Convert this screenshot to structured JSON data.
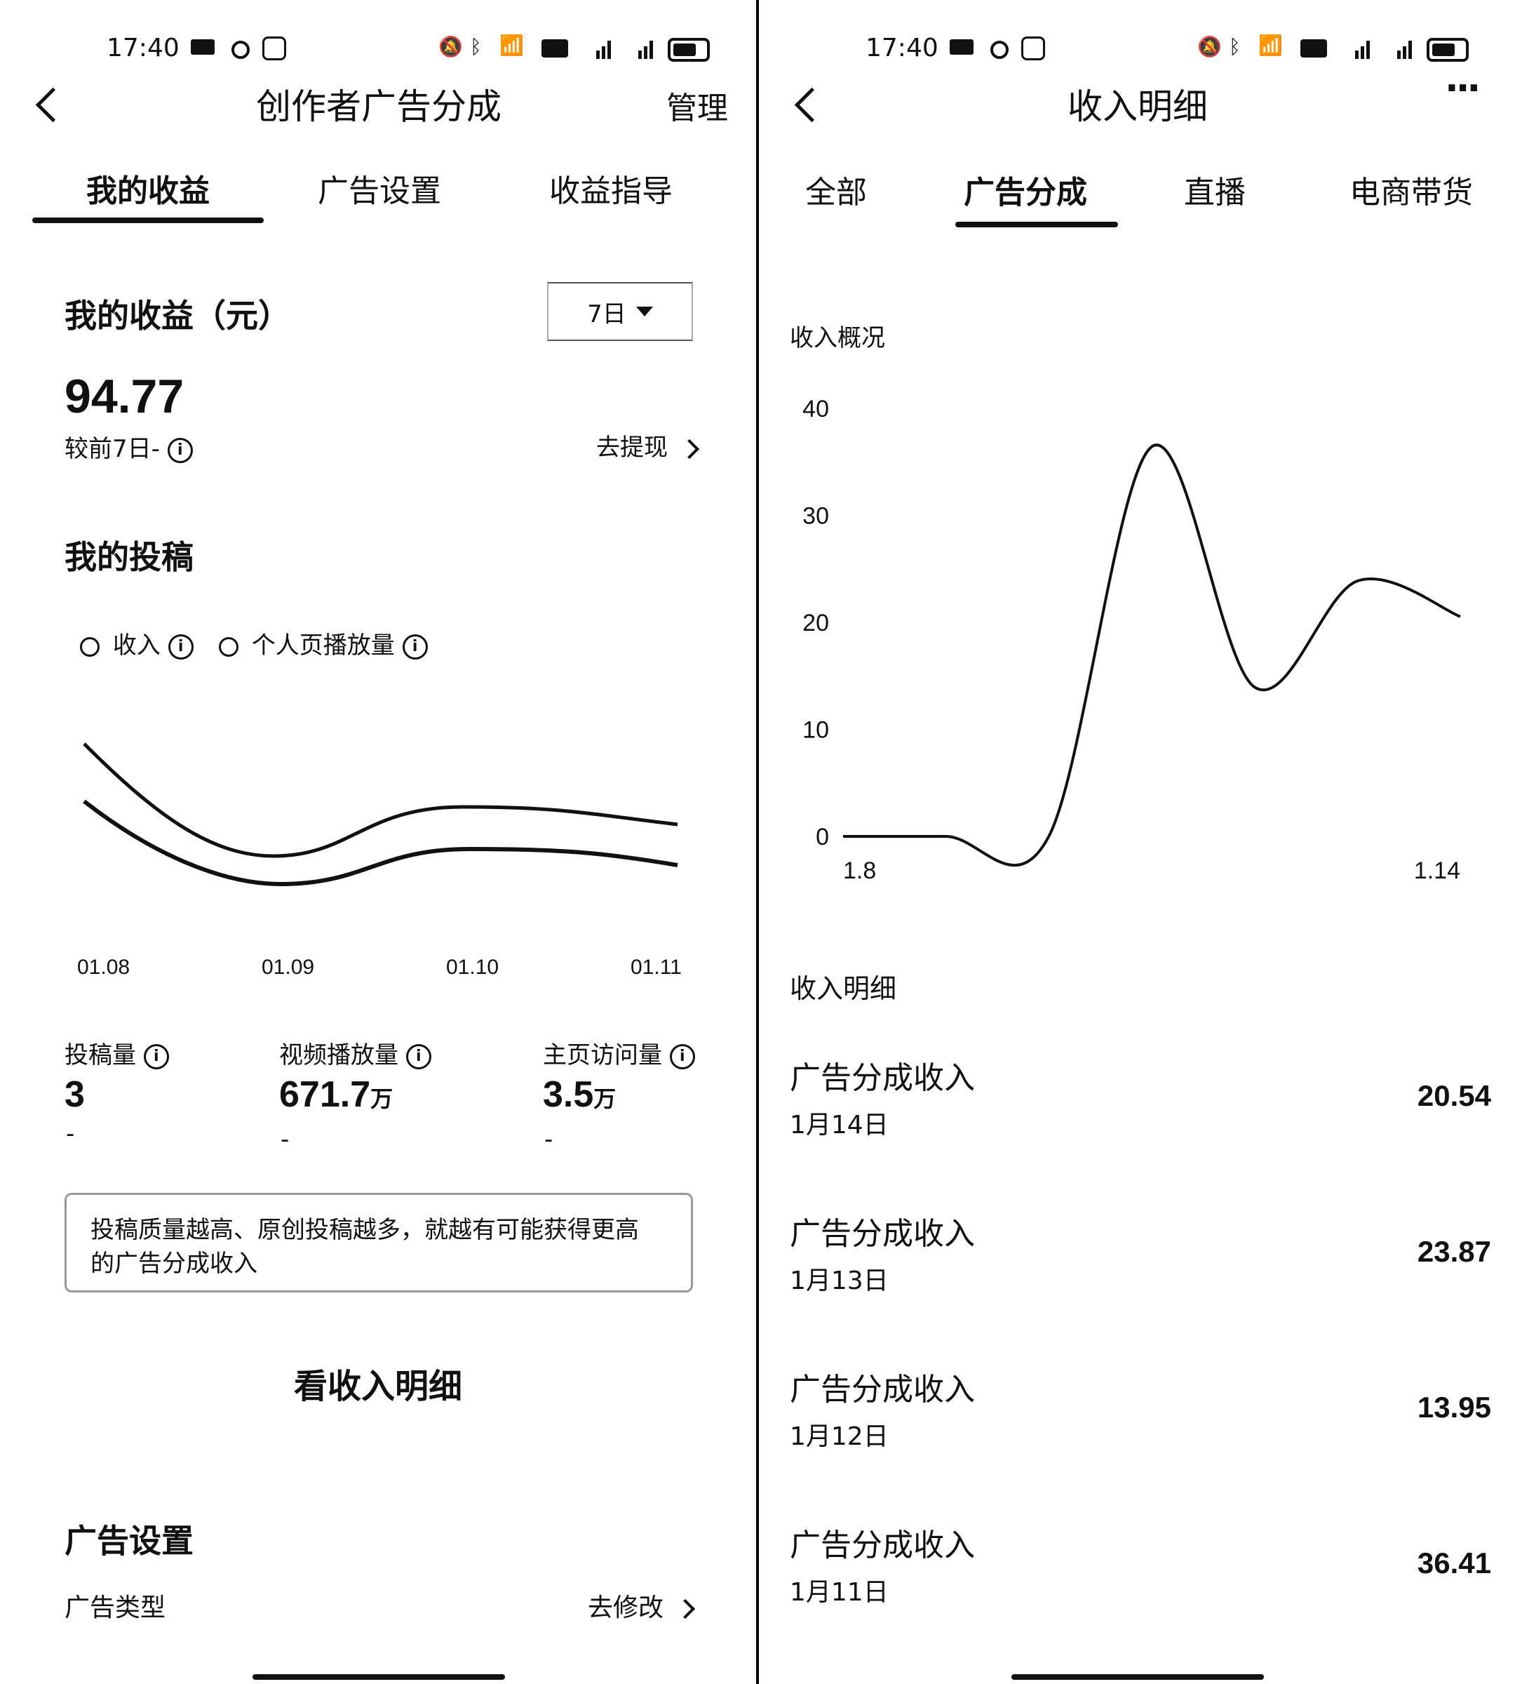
{
  "left": {
    "status": {
      "time": "17:40"
    },
    "header": {
      "title": "创作者广告分成",
      "action": "管理"
    },
    "tabs": [
      {
        "label": "我的收益"
      },
      {
        "label": "广告设置"
      },
      {
        "label": "收益指导"
      }
    ],
    "earnings": {
      "title": "我的收益（元）",
      "period": "7日",
      "amount": "94.77",
      "compare": "较前7日-",
      "withdraw": "去提现"
    },
    "submissions": {
      "title": "我的投稿",
      "legend": [
        {
          "label": "收入"
        },
        {
          "label": "个人页播放量"
        }
      ],
      "x_labels": [
        "01.08",
        "01.09",
        "01.10",
        "01.11"
      ]
    },
    "stats": [
      {
        "label": "投稿量",
        "value": "3",
        "unit": "",
        "change": "-"
      },
      {
        "label": "视频播放量",
        "value": "671.7",
        "unit": "万",
        "change": "-"
      },
      {
        "label": "主页访问量",
        "value": "3.5",
        "unit": "万",
        "change": "-"
      }
    ],
    "tip": "投稿质量越高、原创投稿越多，就越有可能获得更高的广告分成收入",
    "detail_link": "看收入明细",
    "ad_settings": {
      "title": "广告设置",
      "type_label": "广告类型",
      "modify": "去修改"
    }
  },
  "right": {
    "status": {
      "time": "17:40"
    },
    "header": {
      "title": "收入明细",
      "more": "···"
    },
    "tabs": [
      {
        "label": "全部"
      },
      {
        "label": "广告分成"
      },
      {
        "label": "直播"
      },
      {
        "label": "电商带货"
      }
    ],
    "overview_title": "收入概况",
    "list_title": "收入明细",
    "rows": [
      {
        "title": "广告分成收入",
        "date": "1月14日",
        "amount": "20.54"
      },
      {
        "title": "广告分成收入",
        "date": "1月13日",
        "amount": "23.87"
      },
      {
        "title": "广告分成收入",
        "date": "1月12日",
        "amount": "13.95"
      },
      {
        "title": "广告分成收入",
        "date": "1月11日",
        "amount": "36.41"
      }
    ]
  },
  "chart_data": {
    "type": "line",
    "x": [
      "1.8",
      "1.9",
      "1.10",
      "1.11",
      "1.12",
      "1.13",
      "1.14"
    ],
    "x_tick_labels": [
      "1.8",
      "1.14"
    ],
    "values": [
      0,
      0,
      0,
      36.41,
      13.95,
      23.87,
      20.54
    ],
    "ylim": [
      0,
      40
    ],
    "y_ticks": [
      0,
      10,
      20,
      30,
      40
    ],
    "grid": false,
    "title": "收入概况"
  }
}
